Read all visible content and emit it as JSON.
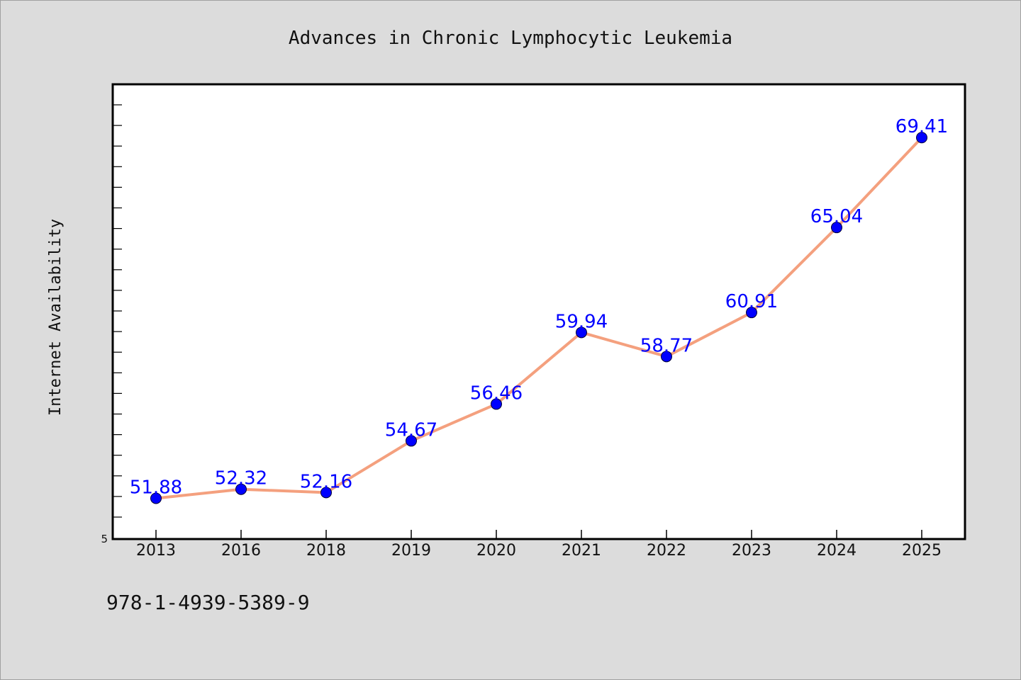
{
  "chart_data": {
    "type": "line",
    "title": "Advances in Chronic Lymphocytic Leukemia",
    "xlabel": "",
    "ylabel": "Internet Availability",
    "categories": [
      "2013",
      "2016",
      "2018",
      "2019",
      "2020",
      "2021",
      "2022",
      "2023",
      "2024",
      "2025"
    ],
    "series": [
      {
        "values": [
          51.88,
          52.32,
          52.16,
          54.67,
          56.46,
          59.94,
          58.77,
          60.91,
          65.04,
          69.41
        ],
        "labels": [
          "51.88",
          "52.32",
          "52.16",
          "54.67",
          "56.46",
          "59.94",
          "58.77",
          "60.91",
          "65.04",
          "69.41"
        ]
      }
    ],
    "ylim": [
      49.9,
      72.0
    ],
    "ytick_labels": [
      "5"
    ],
    "grid": false,
    "legend": "none",
    "line_color": "#f4a07e",
    "marker_color": "#0000ff",
    "label_color": "#0000ff",
    "plot_background": "#ffffff",
    "figure_background": "#dcdcdc"
  },
  "footer": {
    "id_text": "978-1-4939-5389-9"
  }
}
